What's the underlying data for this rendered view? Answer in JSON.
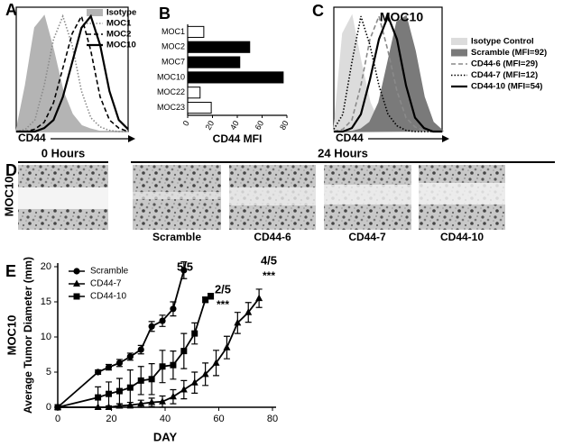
{
  "panel_labels": [
    "A",
    "B",
    "C",
    "D",
    "E"
  ],
  "chart_data": [
    {
      "type": "density",
      "xlabel": "CD44",
      "x": [
        0,
        1,
        2,
        3,
        4,
        5,
        6,
        7,
        8,
        9,
        10,
        11,
        12
      ],
      "xlim": [
        0,
        12
      ],
      "ylim": [
        0,
        100
      ],
      "series": [
        {
          "name": "Isotype",
          "color": "#b4b4b4",
          "style": "fill",
          "values": [
            0,
            40,
            90,
            100,
            70,
            35,
            15,
            5,
            2,
            0,
            0,
            0,
            0
          ]
        },
        {
          "name": "MOC1",
          "color": "#8a8a8a",
          "style": "dotted",
          "values": [
            0,
            2,
            10,
            40,
            80,
            100,
            75,
            35,
            12,
            4,
            1,
            0,
            0
          ]
        },
        {
          "name": "MOC2",
          "color": "#000000",
          "style": "dashed",
          "values": [
            0,
            0,
            2,
            8,
            25,
            55,
            85,
            100,
            70,
            30,
            10,
            3,
            0
          ]
        },
        {
          "name": "MOC10",
          "color": "#000000",
          "style": "solid",
          "values": [
            0,
            0,
            0,
            3,
            10,
            30,
            60,
            90,
            100,
            75,
            35,
            10,
            2
          ]
        }
      ]
    },
    {
      "type": "barh",
      "xlabel": "CD44 MFI",
      "categories": [
        "MOC1",
        "MOC2",
        "MOC7",
        "MOC10",
        "MOC22",
        "MOC23"
      ],
      "values": [
        13,
        50,
        42,
        77,
        10,
        19
      ],
      "colors": [
        "#ffffff",
        "#000000",
        "#000000",
        "#000000",
        "#ffffff",
        "#ffffff"
      ],
      "xlim": [
        0,
        80
      ],
      "xticks": [
        0,
        20,
        40,
        60,
        80
      ]
    },
    {
      "type": "density",
      "title": "MOC10",
      "xlabel": "CD44",
      "x": [
        0,
        1,
        2,
        3,
        4,
        5,
        6,
        7,
        8,
        9,
        10,
        11,
        12
      ],
      "xlim": [
        0,
        12
      ],
      "ylim": [
        0,
        100
      ],
      "series": [
        {
          "name": "Isotype Control",
          "color": "#dcdcdc",
          "style": "fill",
          "values": [
            0,
            85,
            100,
            60,
            25,
            8,
            2,
            0,
            0,
            0,
            0,
            0,
            0
          ]
        },
        {
          "name": "Scramble (MFI=92)",
          "color": "#7a7a7a",
          "style": "fill",
          "values": [
            0,
            0,
            0,
            2,
            8,
            25,
            60,
            95,
            100,
            70,
            30,
            8,
            1
          ]
        },
        {
          "name": "CD44-6   (MFI=29)",
          "color": "#8a8a8a",
          "style": "dashed",
          "values": [
            0,
            2,
            10,
            40,
            80,
            100,
            70,
            35,
            12,
            4,
            1,
            0,
            0
          ]
        },
        {
          "name": "CD44-7   (MFI=12)",
          "color": "#000000",
          "style": "dotted",
          "values": [
            2,
            15,
            60,
            100,
            75,
            40,
            15,
            5,
            1,
            0,
            0,
            0,
            0
          ]
        },
        {
          "name": "CD44-10  (MFI=54)",
          "color": "#000000",
          "style": "solid",
          "values": [
            0,
            0,
            3,
            15,
            45,
            80,
            100,
            80,
            40,
            12,
            3,
            0,
            0
          ]
        }
      ]
    },
    {
      "type": "line",
      "xlabel": "DAY",
      "ylabel": "Average Tumor Diameter (mm)",
      "row_label": "MOC10",
      "xlim": [
        0,
        80
      ],
      "ylim": [
        0,
        20
      ],
      "xticks": [
        0,
        20,
        40,
        60,
        80
      ],
      "yticks": [
        0,
        5,
        10,
        15,
        20
      ],
      "series": [
        {
          "name": "Scramble",
          "color": "#000000",
          "marker": "circle",
          "x": [
            0,
            15,
            19,
            23,
            27,
            31,
            35,
            39,
            43,
            47
          ],
          "values": [
            0,
            5,
            5.7,
            6.3,
            7.2,
            8.2,
            11.5,
            12.3,
            14,
            19.5
          ],
          "errors": [
            0,
            0.3,
            0.4,
            0.5,
            0.5,
            0.6,
            0.7,
            0.8,
            1,
            1.2
          ]
        },
        {
          "name": "CD44-7",
          "color": "#000000",
          "marker": "triangle",
          "x": [
            0,
            15,
            19,
            23,
            27,
            31,
            35,
            39,
            43,
            47,
            51,
            55,
            59,
            63,
            67,
            71,
            75
          ],
          "values": [
            0,
            0,
            0,
            0.2,
            0.3,
            0.5,
            0.7,
            0.8,
            1.5,
            2.5,
            3.5,
            4.7,
            6.3,
            8.5,
            12,
            13.5,
            15.5
          ],
          "errors": [
            0,
            0,
            0,
            0.3,
            0.4,
            0.5,
            0.6,
            0.8,
            1,
            1.3,
            1.5,
            1.6,
            1.8,
            1.6,
            1.5,
            1.4,
            1.3
          ]
        },
        {
          "name": "CD44-10",
          "color": "#000000",
          "marker": "square",
          "x": [
            0,
            15,
            19,
            23,
            27,
            31,
            35,
            39,
            43,
            47,
            51,
            55,
            57
          ],
          "values": [
            0,
            1.4,
            1.9,
            2.3,
            2.8,
            3.8,
            4,
            5.8,
            6,
            8,
            10.5,
            15.3,
            15.8
          ],
          "errors": [
            0,
            1.5,
            1.7,
            1.8,
            2.5,
            2,
            2.2,
            2.3,
            2,
            2.5,
            1.5,
            0.4,
            0.4
          ]
        }
      ],
      "annotations": [
        {
          "text": "5/5"
        },
        {
          "text": "2/5",
          "sub": "***"
        },
        {
          "text": "4/5",
          "sub": "***"
        }
      ]
    }
  ],
  "wound_assay": {
    "row_label": "MOC10",
    "headers": [
      "0 Hours",
      "24 Hours"
    ],
    "conditions": [
      "Scramble",
      "CD44-6",
      "CD44-7",
      "CD44-10"
    ]
  }
}
